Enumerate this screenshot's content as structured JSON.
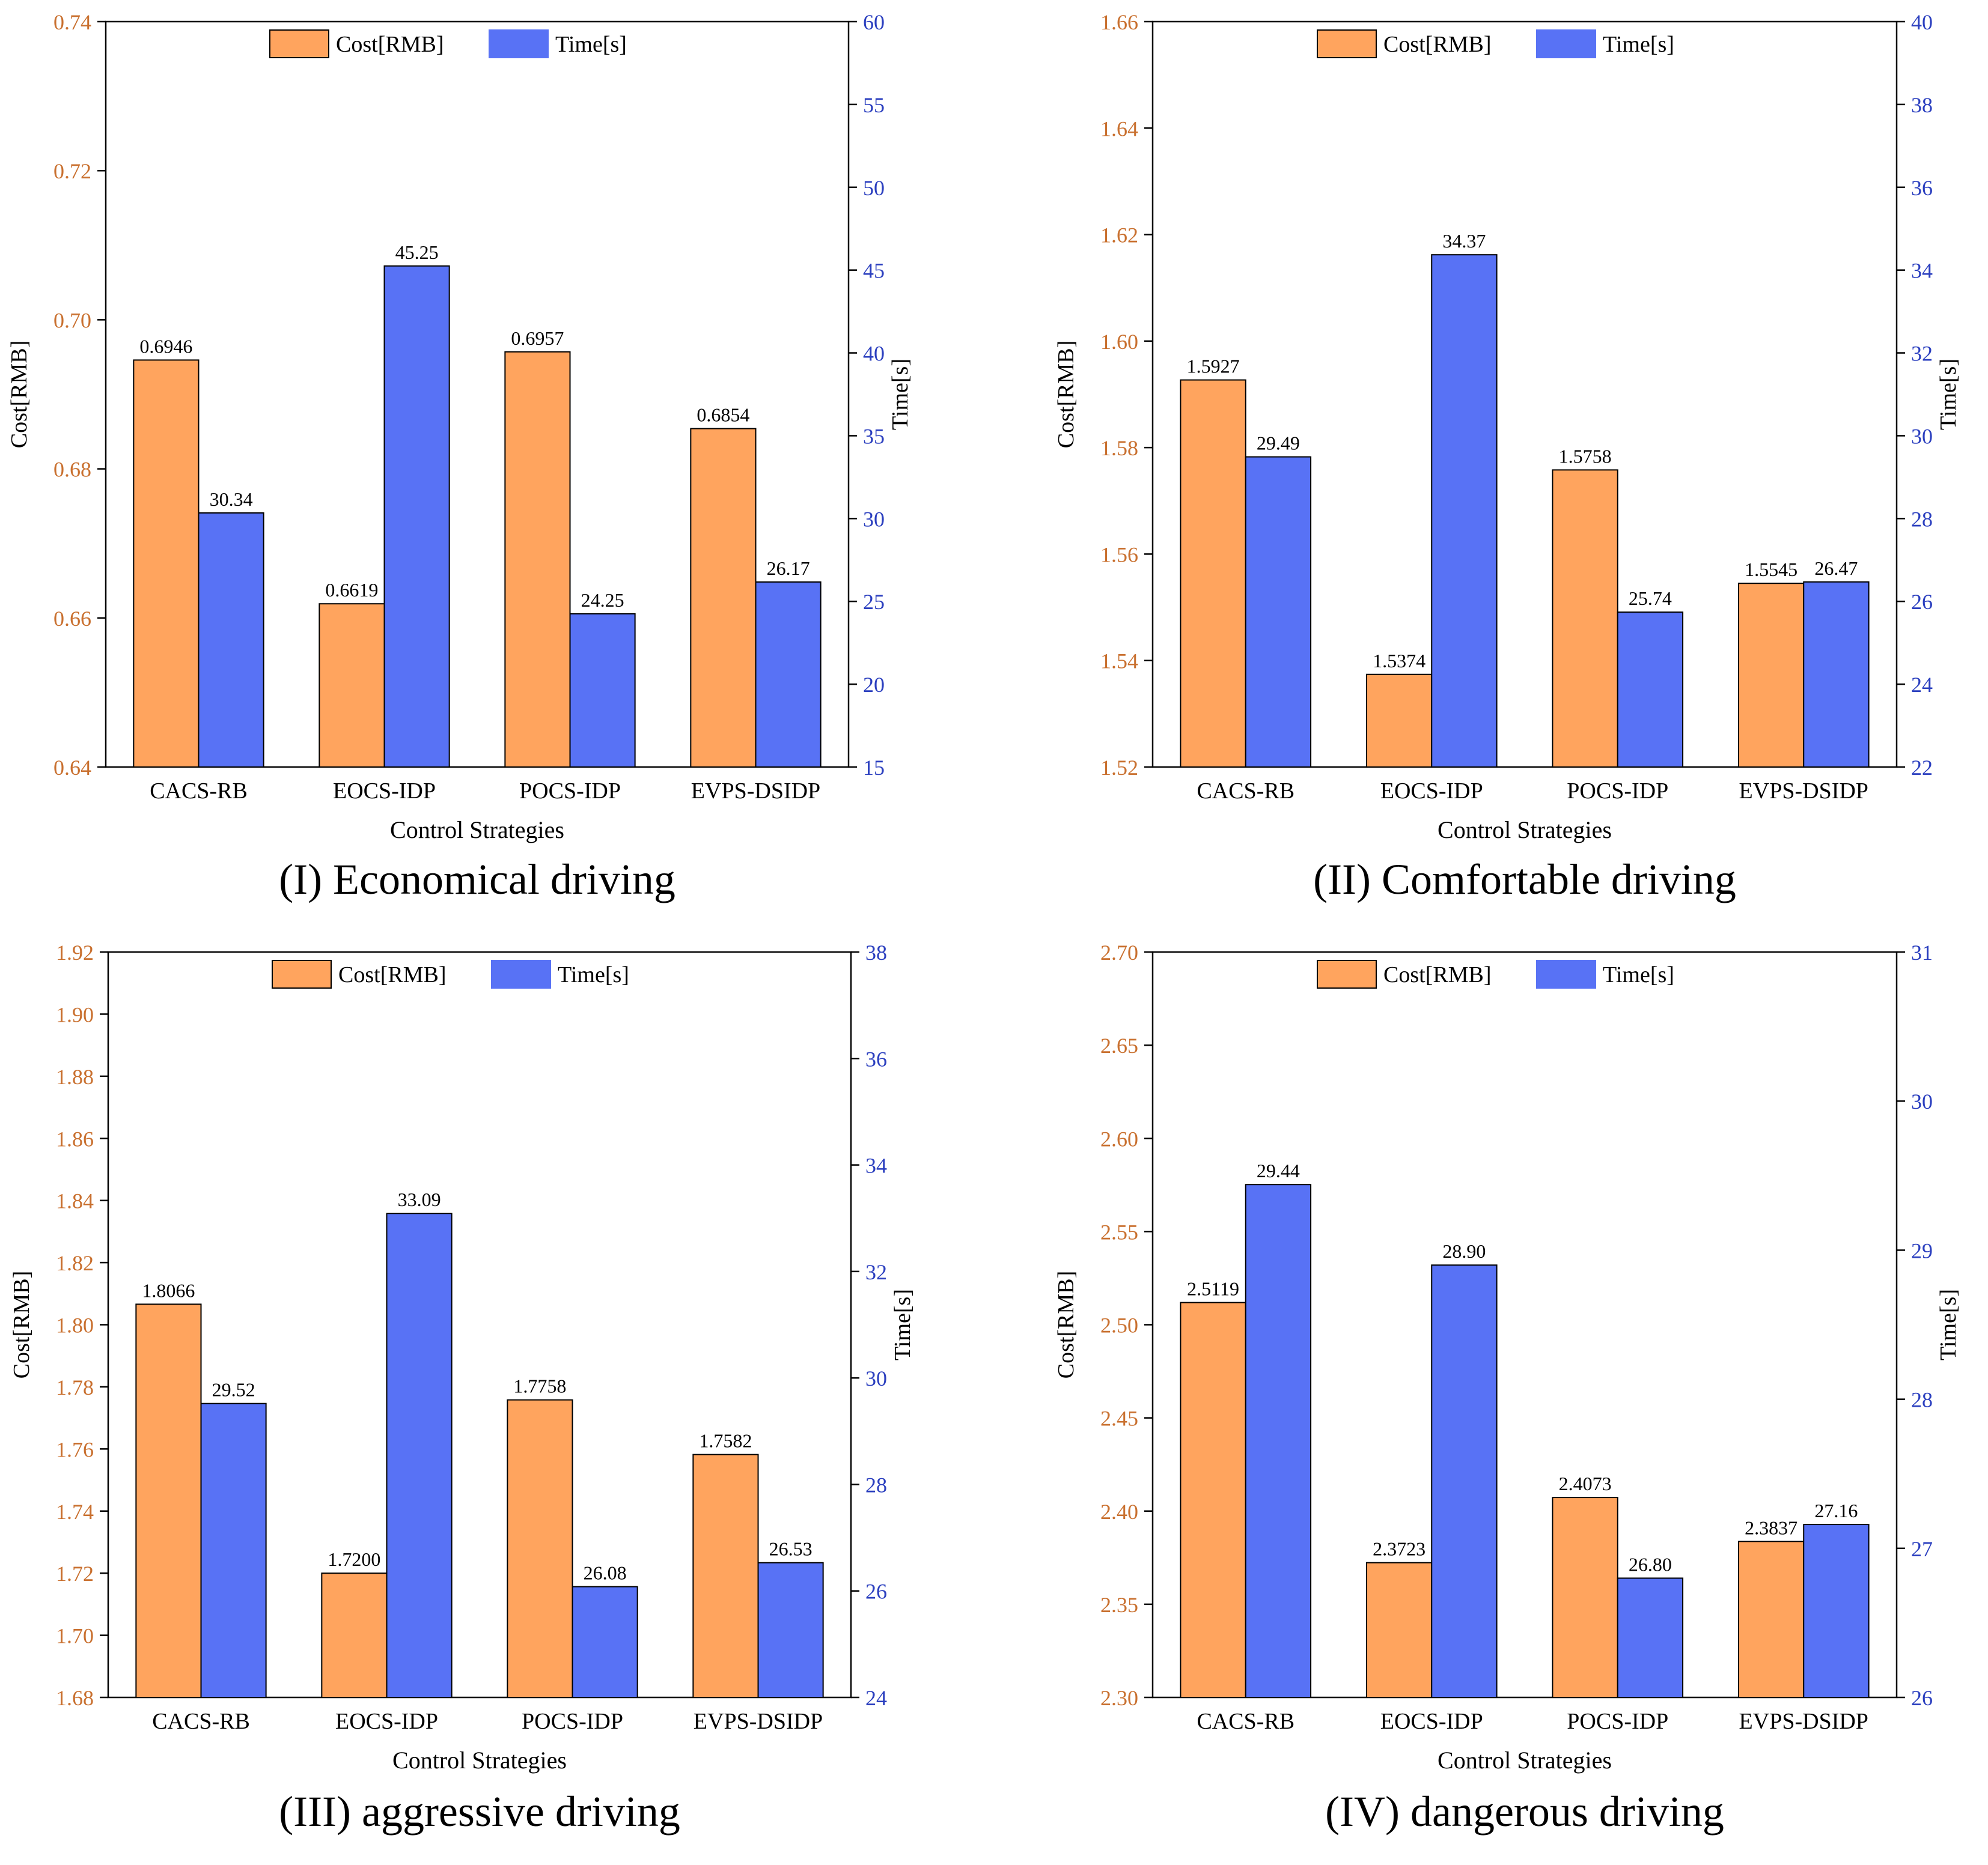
{
  "colors": {
    "cost_fill": "#FFA45E",
    "time_fill": "#5872F5",
    "cost_axis": "#C9702F",
    "time_axis": "#2B3FBF",
    "frame": "#000000",
    "text": "#000000"
  },
  "legend": {
    "cost": "Cost[RMB]",
    "time": "Time[s]"
  },
  "chart_data": [
    {
      "type": "bar",
      "title": "(I) Economical driving",
      "categories": [
        "CACS-RB",
        "EOCS-IDP",
        "POCS-IDP",
        "EVPS-DSIDP"
      ],
      "xlabel": "Control Strategies",
      "ylabel_left": "Cost[RMB]",
      "ylabel_right": "Time[s]",
      "ylim_left": [
        0.64,
        0.74
      ],
      "ylim_right": [
        15,
        60
      ],
      "ticks_left": [
        "0.64",
        "0.66",
        "0.68",
        "0.70",
        "0.72",
        "0.74"
      ],
      "ticks_right": [
        "15",
        "20",
        "25",
        "30",
        "35",
        "40",
        "45",
        "50",
        "55",
        "60"
      ],
      "series": [
        {
          "name": "Cost[RMB]",
          "axis": "left",
          "values": [
            0.6946,
            0.6619,
            0.6957,
            0.6854
          ],
          "labels": [
            "0.6946",
            "0.6619",
            "0.6957",
            "0.6854"
          ]
        },
        {
          "name": "Time[s]",
          "axis": "right",
          "values": [
            30.34,
            45.25,
            24.25,
            26.17
          ],
          "labels": [
            "30.34",
            "45.25",
            "24.25",
            "26.17"
          ]
        }
      ],
      "legend_position": "top-center"
    },
    {
      "type": "bar",
      "title": "(II) Comfortable driving",
      "categories": [
        "CACS-RB",
        "EOCS-IDP",
        "POCS-IDP",
        "EVPS-DSIDP"
      ],
      "xlabel": "Control Strategies",
      "ylabel_left": "Cost[RMB]",
      "ylabel_right": "Time[s]",
      "ylim_left": [
        1.52,
        1.66
      ],
      "ylim_right": [
        22,
        40
      ],
      "ticks_left": [
        "1.52",
        "1.54",
        "1.56",
        "1.58",
        "1.60",
        "1.62",
        "1.64",
        "1.66"
      ],
      "ticks_right": [
        "22",
        "24",
        "26",
        "28",
        "30",
        "32",
        "34",
        "36",
        "38",
        "40"
      ],
      "series": [
        {
          "name": "Cost[RMB]",
          "axis": "left",
          "values": [
            1.5927,
            1.5374,
            1.5758,
            1.5545
          ],
          "labels": [
            "1.5927",
            "1.5374",
            "1.5758",
            "1.5545"
          ]
        },
        {
          "name": "Time[s]",
          "axis": "right",
          "values": [
            29.49,
            34.37,
            25.74,
            26.47
          ],
          "labels": [
            "29.49",
            "34.37",
            "25.74",
            "26.47"
          ]
        }
      ],
      "legend_position": "top-center"
    },
    {
      "type": "bar",
      "title": "(III) aggressive driving",
      "categories": [
        "CACS-RB",
        "EOCS-IDP",
        "POCS-IDP",
        "EVPS-DSIDP"
      ],
      "xlabel": "Control Strategies",
      "ylabel_left": "Cost[RMB]",
      "ylabel_right": "Time[s]",
      "ylim_left": [
        1.68,
        1.92
      ],
      "ylim_right": [
        24,
        38
      ],
      "ticks_left": [
        "1.68",
        "1.70",
        "1.72",
        "1.74",
        "1.76",
        "1.78",
        "1.80",
        "1.82",
        "1.84",
        "1.86",
        "1.88",
        "1.90",
        "1.92"
      ],
      "ticks_right": [
        "24",
        "26",
        "28",
        "30",
        "32",
        "34",
        "36",
        "38"
      ],
      "series": [
        {
          "name": "Cost[RMB]",
          "axis": "left",
          "values": [
            1.8066,
            1.72,
            1.7758,
            1.7582
          ],
          "labels": [
            "1.8066",
            "1.7200",
            "1.7758",
            "1.7582"
          ]
        },
        {
          "name": "Time[s]",
          "axis": "right",
          "values": [
            29.52,
            33.09,
            26.08,
            26.53
          ],
          "labels": [
            "29.52",
            "33.09",
            "26.08",
            "26.53"
          ]
        }
      ],
      "legend_position": "top-center"
    },
    {
      "type": "bar",
      "title": "(IV) dangerous driving",
      "categories": [
        "CACS-RB",
        "EOCS-IDP",
        "POCS-IDP",
        "EVPS-DSIDP"
      ],
      "xlabel": "Control Strategies",
      "ylabel_left": "Cost[RMB]",
      "ylabel_right": "Time[s]",
      "ylim_left": [
        2.3,
        2.7
      ],
      "ylim_right": [
        26,
        31
      ],
      "ticks_left": [
        "2.30",
        "2.35",
        "2.40",
        "2.45",
        "2.50",
        "2.55",
        "2.60",
        "2.65",
        "2.70"
      ],
      "ticks_right": [
        "26",
        "27",
        "28",
        "29",
        "30",
        "31"
      ],
      "series": [
        {
          "name": "Cost[RMB]",
          "axis": "left",
          "values": [
            2.5119,
            2.3723,
            2.4073,
            2.3837
          ],
          "labels": [
            "2.5119",
            "2.3723",
            "2.4073",
            "2.3837"
          ]
        },
        {
          "name": "Time[s]",
          "axis": "right",
          "values": [
            29.44,
            28.9,
            26.8,
            27.16
          ],
          "labels": [
            "29.44",
            "28.90",
            "26.80",
            "27.16"
          ]
        }
      ],
      "legend_position": "top-center"
    }
  ]
}
